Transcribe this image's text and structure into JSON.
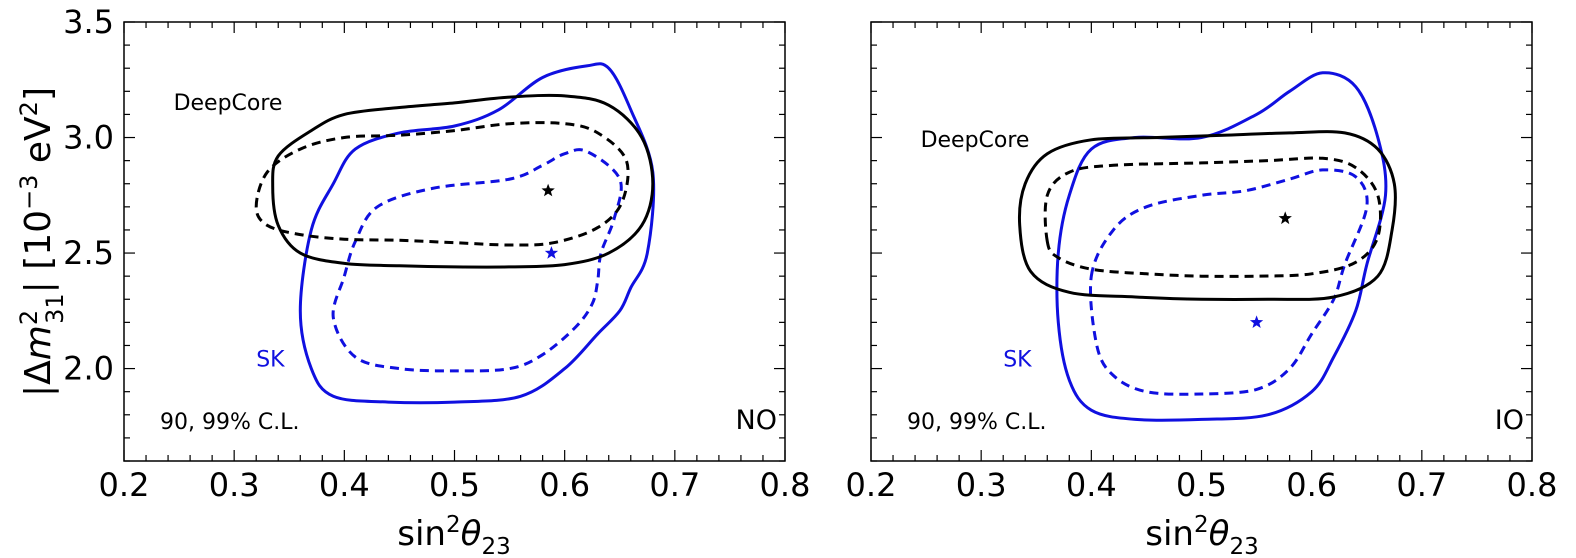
{
  "figure": {
    "ylabel_parts": [
      "|Δ",
      "m",
      "2",
      "31",
      "| [10",
      "−3",
      " eV",
      "2",
      "]"
    ],
    "xlabel_parts": [
      "sin",
      "2",
      "θ",
      "23"
    ]
  },
  "chart_data": [
    {
      "type": "contour",
      "ordering_label": "NO",
      "cl_label": "90, 99% C.L.",
      "xlim": [
        0.2,
        0.8
      ],
      "ylim": [
        1.6,
        3.5
      ],
      "xticks": [
        0.2,
        0.3,
        0.4,
        0.5,
        0.6,
        0.7,
        0.8
      ],
      "xtick_labels": [
        "0.2",
        "0.3",
        "0.4",
        "0.5",
        "0.6",
        "0.7",
        "0.8"
      ],
      "yticks": [
        2.0,
        2.5,
        3.0,
        3.5
      ],
      "ytick_labels": [
        "2.0",
        "2.5",
        "3.0",
        "3.5"
      ],
      "grid": false,
      "series": [
        {
          "name": "DeepCore",
          "label_at": [
            0.245,
            3.12
          ],
          "color": "#000000",
          "best_fit": [
            0.585,
            2.77
          ],
          "contour_90": [
            [
              0.32,
              2.7
            ],
            [
              0.33,
              2.85
            ],
            [
              0.36,
              2.95
            ],
            [
              0.4,
              3.0
            ],
            [
              0.45,
              3.01
            ],
            [
              0.5,
              3.03
            ],
            [
              0.55,
              3.06
            ],
            [
              0.6,
              3.06
            ],
            [
              0.63,
              3.02
            ],
            [
              0.656,
              2.9
            ],
            [
              0.652,
              2.72
            ],
            [
              0.63,
              2.61
            ],
            [
              0.59,
              2.545
            ],
            [
              0.55,
              2.535
            ],
            [
              0.5,
              2.545
            ],
            [
              0.45,
              2.555
            ],
            [
              0.4,
              2.56
            ],
            [
              0.36,
              2.58
            ],
            [
              0.33,
              2.62
            ]
          ],
          "contour_99": [
            [
              0.335,
              2.79
            ],
            [
              0.34,
              2.92
            ],
            [
              0.37,
              3.03
            ],
            [
              0.4,
              3.1
            ],
            [
              0.45,
              3.13
            ],
            [
              0.5,
              3.15
            ],
            [
              0.55,
              3.175
            ],
            [
              0.6,
              3.18
            ],
            [
              0.64,
              3.14
            ],
            [
              0.67,
              3.0
            ],
            [
              0.68,
              2.8
            ],
            [
              0.67,
              2.62
            ],
            [
              0.64,
              2.5
            ],
            [
              0.6,
              2.45
            ],
            [
              0.55,
              2.44
            ],
            [
              0.5,
              2.44
            ],
            [
              0.45,
              2.445
            ],
            [
              0.4,
              2.455
            ],
            [
              0.36,
              2.5
            ],
            [
              0.34,
              2.62
            ]
          ]
        },
        {
          "name": "SK",
          "label_at": [
            0.32,
            2.01
          ],
          "color": "#1010e0",
          "best_fit": [
            0.588,
            2.5
          ],
          "contour_90": [
            [
              0.4,
              2.4
            ],
            [
              0.41,
              2.55
            ],
            [
              0.43,
              2.7
            ],
            [
              0.48,
              2.78
            ],
            [
              0.55,
              2.82
            ],
            [
              0.58,
              2.88
            ],
            [
              0.6,
              2.93
            ],
            [
              0.62,
              2.94
            ],
            [
              0.65,
              2.82
            ],
            [
              0.645,
              2.65
            ],
            [
              0.633,
              2.5
            ],
            [
              0.63,
              2.38
            ],
            [
              0.625,
              2.28
            ],
            [
              0.61,
              2.18
            ],
            [
              0.58,
              2.06
            ],
            [
              0.55,
              2.0
            ],
            [
              0.5,
              1.99
            ],
            [
              0.45,
              2.0
            ],
            [
              0.41,
              2.05
            ],
            [
              0.39,
              2.22
            ]
          ],
          "contour_99": [
            [
              0.37,
              2.6
            ],
            [
              0.39,
              2.8
            ],
            [
              0.41,
              2.95
            ],
            [
              0.45,
              3.02
            ],
            [
              0.5,
              3.05
            ],
            [
              0.54,
              3.12
            ],
            [
              0.58,
              3.26
            ],
            [
              0.62,
              3.31
            ],
            [
              0.64,
              3.3
            ],
            [
              0.66,
              3.12
            ],
            [
              0.68,
              2.85
            ],
            [
              0.675,
              2.5
            ],
            [
              0.66,
              2.35
            ],
            [
              0.65,
              2.25
            ],
            [
              0.63,
              2.15
            ],
            [
              0.6,
              2.0
            ],
            [
              0.56,
              1.88
            ],
            [
              0.5,
              1.855
            ],
            [
              0.44,
              1.855
            ],
            [
              0.39,
              1.88
            ],
            [
              0.37,
              2.0
            ],
            [
              0.36,
              2.25
            ]
          ]
        }
      ]
    },
    {
      "type": "contour",
      "ordering_label": "IO",
      "cl_label": "90, 99% C.L.",
      "xlim": [
        0.2,
        0.8
      ],
      "ylim": [
        1.6,
        3.5
      ],
      "xticks": [
        0.2,
        0.3,
        0.4,
        0.5,
        0.6,
        0.7,
        0.8
      ],
      "xtick_labels": [
        "0.2",
        "0.3",
        "0.4",
        "0.5",
        "0.6",
        "0.7",
        "0.8"
      ],
      "yticks": [
        2.0,
        2.5,
        3.0,
        3.5
      ],
      "ytick_labels": [
        "2.0",
        "2.5",
        "3.0",
        "3.5"
      ],
      "grid": false,
      "series": [
        {
          "name": "DeepCore",
          "label_at": [
            0.245,
            2.96
          ],
          "color": "#000000",
          "best_fit": [
            0.576,
            2.65
          ],
          "contour_90": [
            [
              0.36,
              2.55
            ],
            [
              0.36,
              2.75
            ],
            [
              0.38,
              2.85
            ],
            [
              0.42,
              2.88
            ],
            [
              0.5,
              2.89
            ],
            [
              0.56,
              2.9
            ],
            [
              0.61,
              2.91
            ],
            [
              0.64,
              2.87
            ],
            [
              0.66,
              2.75
            ],
            [
              0.66,
              2.57
            ],
            [
              0.64,
              2.46
            ],
            [
              0.6,
              2.41
            ],
            [
              0.55,
              2.4
            ],
            [
              0.5,
              2.4
            ],
            [
              0.45,
              2.41
            ],
            [
              0.4,
              2.43
            ],
            [
              0.37,
              2.48
            ]
          ],
          "contour_99": [
            [
              0.335,
              2.62
            ],
            [
              0.34,
              2.8
            ],
            [
              0.36,
              2.93
            ],
            [
              0.4,
              2.99
            ],
            [
              0.46,
              3.0
            ],
            [
              0.52,
              3.01
            ],
            [
              0.58,
              3.02
            ],
            [
              0.63,
              3.02
            ],
            [
              0.66,
              2.95
            ],
            [
              0.675,
              2.8
            ],
            [
              0.673,
              2.6
            ],
            [
              0.66,
              2.4
            ],
            [
              0.62,
              2.31
            ],
            [
              0.56,
              2.3
            ],
            [
              0.5,
              2.3
            ],
            [
              0.44,
              2.31
            ],
            [
              0.38,
              2.33
            ],
            [
              0.345,
              2.42
            ]
          ]
        },
        {
          "name": "SK",
          "label_at": [
            0.32,
            2.01
          ],
          "color": "#1010e0",
          "best_fit": [
            0.55,
            2.2
          ],
          "contour_90": [
            [
              0.4,
              2.4
            ],
            [
              0.42,
              2.6
            ],
            [
              0.45,
              2.7
            ],
            [
              0.5,
              2.75
            ],
            [
              0.54,
              2.77
            ],
            [
              0.58,
              2.82
            ],
            [
              0.61,
              2.86
            ],
            [
              0.64,
              2.83
            ],
            [
              0.65,
              2.7
            ],
            [
              0.63,
              2.45
            ],
            [
              0.62,
              2.3
            ],
            [
              0.6,
              2.15
            ],
            [
              0.58,
              2.0
            ],
            [
              0.55,
              1.91
            ],
            [
              0.5,
              1.89
            ],
            [
              0.45,
              1.9
            ],
            [
              0.42,
              1.97
            ],
            [
              0.405,
              2.1
            ]
          ],
          "contour_99": [
            [
              0.37,
              2.5
            ],
            [
              0.38,
              2.75
            ],
            [
              0.4,
              2.95
            ],
            [
              0.44,
              3.0
            ],
            [
              0.5,
              3.0
            ],
            [
              0.55,
              3.1
            ],
            [
              0.58,
              3.2
            ],
            [
              0.61,
              3.28
            ],
            [
              0.64,
              3.22
            ],
            [
              0.66,
              3.0
            ],
            [
              0.667,
              2.75
            ],
            [
              0.65,
              2.45
            ],
            [
              0.64,
              2.25
            ],
            [
              0.62,
              2.05
            ],
            [
              0.6,
              1.9
            ],
            [
              0.56,
              1.8
            ],
            [
              0.5,
              1.78
            ],
            [
              0.44,
              1.78
            ],
            [
              0.4,
              1.82
            ],
            [
              0.38,
              1.95
            ],
            [
              0.37,
              2.2
            ]
          ]
        }
      ]
    }
  ]
}
